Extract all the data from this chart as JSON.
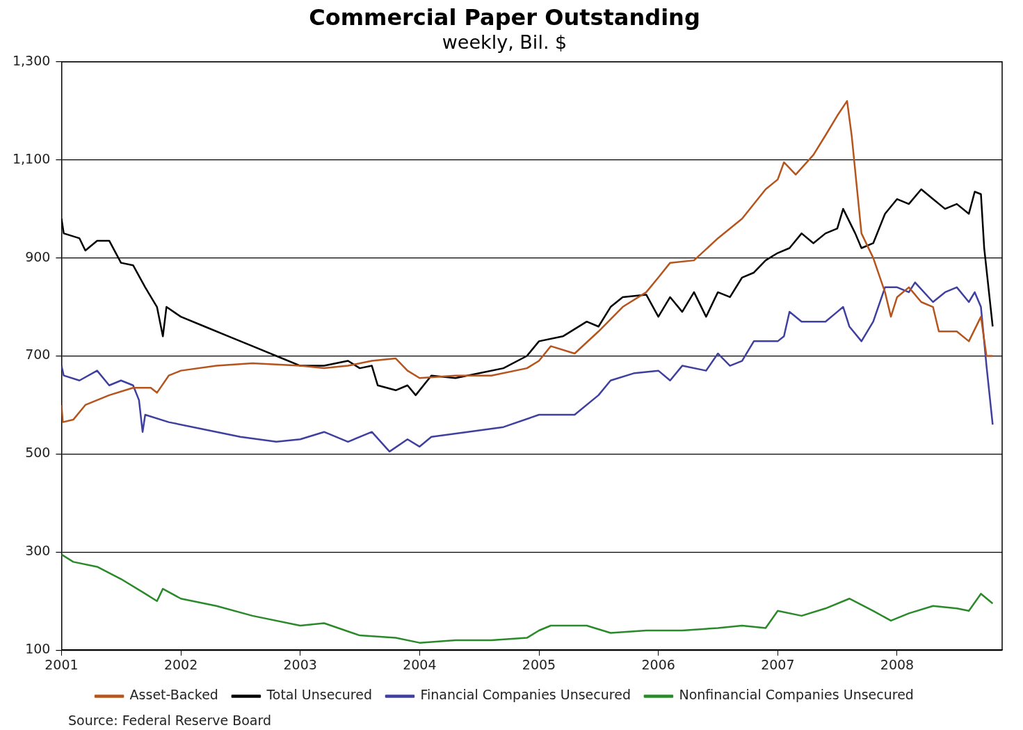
{
  "chart_data": {
    "type": "line",
    "title": "Commercial Paper Outstanding",
    "subtitle": "weekly, Bil. $",
    "xlim": [
      "2001-01-01",
      "2008-11-18"
    ],
    "xticks": [
      "2001",
      "2002",
      "2003",
      "2004",
      "2005",
      "2006",
      "2007",
      "2008"
    ],
    "ylim": [
      100,
      1300
    ],
    "yticks": [
      100,
      300,
      500,
      700,
      900,
      {
        "value": 1100,
        "label": "1,100"
      },
      {
        "value": 1300,
        "label": "1,300"
      }
    ],
    "grid": "y",
    "legend": "bottom",
    "marker": "none",
    "line_style": "solid",
    "annotations": [
      "Source: Federal Reserve Board"
    ],
    "series": [
      {
        "name": "Asset-Backed",
        "color": "#b5541c",
        "x": [
          "2001-01-01",
          "2001-01-05",
          "2001-02-06",
          "2001-03-15",
          "2001-05-27",
          "2001-08-08",
          "2001-10-01",
          "2001-10-20",
          "2001-11-25",
          "2002-01-01",
          "2002-04-20",
          "2002-08-08",
          "2003-01-01",
          "2003-03-15",
          "2003-05-27",
          "2003-08-08",
          "2003-10-20",
          "2003-11-25",
          "2004-01-01",
          "2004-04-20",
          "2004-08-08",
          "2004-11-25",
          "2005-01-01",
          "2005-02-06",
          "2005-04-20",
          "2005-07-02",
          "2005-09-14",
          "2005-11-25",
          "2006-01-01",
          "2006-02-06",
          "2006-04-20",
          "2006-07-02",
          "2006-09-14",
          "2006-11-25",
          "2007-01-01",
          "2007-01-20",
          "2007-02-25",
          "2007-04-20",
          "2007-05-27",
          "2007-07-02",
          "2007-08-01",
          "2007-08-15",
          "2007-09-14",
          "2007-10-20",
          "2007-11-25",
          "2007-12-13",
          "2008-01-01",
          "2008-02-06",
          "2008-03-15",
          "2008-04-20",
          "2008-05-08",
          "2008-07-02",
          "2008-08-08",
          "2008-09-14",
          "2008-10-01",
          "2008-10-20"
        ],
        "values": [
          600,
          565,
          570,
          600,
          620,
          635,
          635,
          625,
          660,
          670,
          680,
          685,
          680,
          675,
          680,
          690,
          695,
          670,
          655,
          660,
          660,
          675,
          690,
          720,
          705,
          750,
          800,
          830,
          860,
          890,
          895,
          940,
          980,
          1040,
          1060,
          1095,
          1070,
          1110,
          1150,
          1190,
          1220,
          1150,
          950,
          900,
          830,
          780,
          820,
          840,
          810,
          800,
          750,
          750,
          730,
          780,
          700,
          700
        ]
      },
      {
        "name": "Total Unsecured",
        "color": "#000000",
        "x": [
          "2001-01-01",
          "2001-01-08",
          "2001-02-25",
          "2001-03-15",
          "2001-04-20",
          "2001-05-27",
          "2001-07-02",
          "2001-08-08",
          "2001-09-14",
          "2001-10-20",
          "2001-11-07",
          "2001-11-18",
          "2002-01-01",
          "2002-03-15",
          "2002-05-27",
          "2002-08-08",
          "2002-10-20",
          "2003-01-01",
          "2003-03-15",
          "2003-05-27",
          "2003-07-02",
          "2003-08-08",
          "2003-08-26",
          "2003-10-20",
          "2003-11-25",
          "2003-12-20",
          "2004-02-06",
          "2004-04-20",
          "2004-07-02",
          "2004-09-14",
          "2004-11-25",
          "2005-01-01",
          "2005-03-15",
          "2005-05-27",
          "2005-07-02",
          "2005-08-08",
          "2005-09-14",
          "2005-11-25",
          "2006-01-01",
          "2006-02-06",
          "2006-03-15",
          "2006-04-20",
          "2006-05-27",
          "2006-07-02",
          "2006-08-08",
          "2006-09-14",
          "2006-10-20",
          "2006-11-25",
          "2007-01-01",
          "2007-02-06",
          "2007-03-15",
          "2007-04-20",
          "2007-05-27",
          "2007-07-02",
          "2007-07-20",
          "2007-08-26",
          "2007-09-14",
          "2007-10-20",
          "2007-11-25",
          "2008-01-01",
          "2008-02-06",
          "2008-03-15",
          "2008-04-20",
          "2008-05-27",
          "2008-07-02",
          "2008-08-08",
          "2008-08-26",
          "2008-09-14",
          "2008-09-24",
          "2008-10-20"
        ],
        "values": [
          980,
          950,
          940,
          915,
          935,
          935,
          890,
          885,
          840,
          800,
          740,
          800,
          780,
          760,
          740,
          720,
          700,
          680,
          680,
          690,
          675,
          680,
          640,
          630,
          640,
          620,
          660,
          655,
          665,
          675,
          700,
          730,
          740,
          770,
          760,
          800,
          820,
          825,
          780,
          820,
          790,
          830,
          780,
          830,
          820,
          860,
          870,
          895,
          910,
          920,
          950,
          930,
          950,
          960,
          1000,
          950,
          920,
          930,
          990,
          1020,
          1010,
          1040,
          1020,
          1000,
          1010,
          990,
          1035,
          1030,
          920,
          760
        ]
      },
      {
        "name": "Financial Companies Unsecured",
        "color": "#3f3f9f",
        "x": [
          "2001-01-01",
          "2001-01-08",
          "2001-02-25",
          "2001-04-20",
          "2001-05-27",
          "2001-07-02",
          "2001-08-08",
          "2001-08-26",
          "2001-09-06",
          "2001-09-14",
          "2001-11-25",
          "2002-03-15",
          "2002-07-02",
          "2002-10-20",
          "2003-01-01",
          "2003-03-15",
          "2003-05-27",
          "2003-08-08",
          "2003-10-01",
          "2003-11-25",
          "2004-01-01",
          "2004-02-06",
          "2004-05-27",
          "2004-09-14",
          "2005-01-01",
          "2005-04-20",
          "2005-07-02",
          "2005-08-08",
          "2005-10-20",
          "2006-01-01",
          "2006-02-06",
          "2006-03-15",
          "2006-05-27",
          "2006-07-02",
          "2006-08-08",
          "2006-09-14",
          "2006-10-20",
          "2007-01-01",
          "2007-01-20",
          "2007-02-06",
          "2007-03-15",
          "2007-05-27",
          "2007-07-02",
          "2007-07-20",
          "2007-08-08",
          "2007-09-14",
          "2007-10-20",
          "2007-11-25",
          "2008-01-01",
          "2008-02-06",
          "2008-02-25",
          "2008-04-20",
          "2008-05-27",
          "2008-07-02",
          "2008-08-08",
          "2008-08-26",
          "2008-09-14",
          "2008-10-01",
          "2008-10-20"
        ],
        "values": [
          680,
          660,
          650,
          670,
          640,
          650,
          640,
          610,
          545,
          580,
          565,
          550,
          535,
          525,
          530,
          545,
          525,
          545,
          505,
          530,
          515,
          535,
          545,
          555,
          580,
          580,
          620,
          650,
          665,
          670,
          650,
          680,
          670,
          705,
          680,
          690,
          730,
          730,
          740,
          790,
          770,
          770,
          790,
          800,
          760,
          730,
          770,
          840,
          840,
          830,
          850,
          810,
          830,
          840,
          810,
          830,
          800,
          680,
          560
        ]
      },
      {
        "name": "Nonfinancial Companies Unsecured",
        "color": "#2a8a2a",
        "x": [
          "2001-01-01",
          "2001-02-06",
          "2001-04-20",
          "2001-07-02",
          "2001-09-14",
          "2001-10-20",
          "2001-11-07",
          "2002-01-01",
          "2002-04-20",
          "2002-08-08",
          "2003-01-01",
          "2003-03-15",
          "2003-07-02",
          "2003-10-20",
          "2004-01-01",
          "2004-04-20",
          "2004-08-08",
          "2004-11-25",
          "2005-01-01",
          "2005-02-06",
          "2005-05-27",
          "2005-08-08",
          "2005-11-25",
          "2006-03-15",
          "2006-07-02",
          "2006-09-14",
          "2006-11-25",
          "2007-01-01",
          "2007-03-15",
          "2007-05-27",
          "2007-08-08",
          "2007-10-20",
          "2007-12-13",
          "2008-02-06",
          "2008-04-20",
          "2008-07-02",
          "2008-08-08",
          "2008-09-14",
          "2008-10-20"
        ],
        "values": [
          295,
          280,
          270,
          245,
          215,
          200,
          225,
          205,
          190,
          170,
          150,
          155,
          130,
          125,
          115,
          120,
          120,
          125,
          140,
          150,
          150,
          135,
          140,
          140,
          145,
          150,
          145,
          180,
          170,
          185,
          205,
          180,
          160,
          175,
          190,
          185,
          180,
          215,
          195
        ]
      }
    ]
  }
}
